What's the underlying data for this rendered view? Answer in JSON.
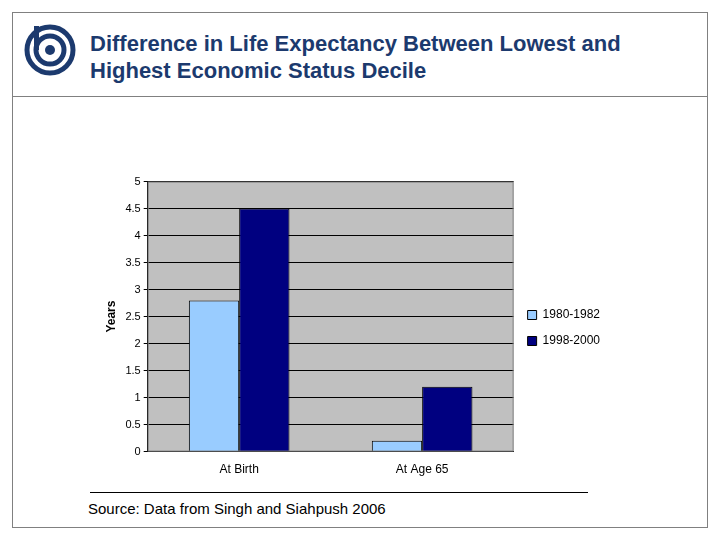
{
  "chart_data": {
    "type": "bar",
    "title": "Difference in Life Expectancy Between Lowest and Highest Economic Status Decile",
    "source": "Source: Data from Singh and Siahpush 2006",
    "y_label": "Years",
    "categories": [
      "At Birth",
      "At Age 65"
    ],
    "series": [
      {
        "name": "1980-1982",
        "color": "#99ccff",
        "values": [
          2.8,
          0.2
        ]
      },
      {
        "name": "1998-2000",
        "color": "#000080",
        "values": [
          4.5,
          1.2
        ]
      }
    ],
    "ylim": [
      0,
      5
    ],
    "yticks": [
      0,
      0.5,
      1,
      1.5,
      2,
      2.5,
      3,
      3.5,
      4,
      4.5,
      5
    ],
    "grid": true,
    "legend": "right"
  }
}
